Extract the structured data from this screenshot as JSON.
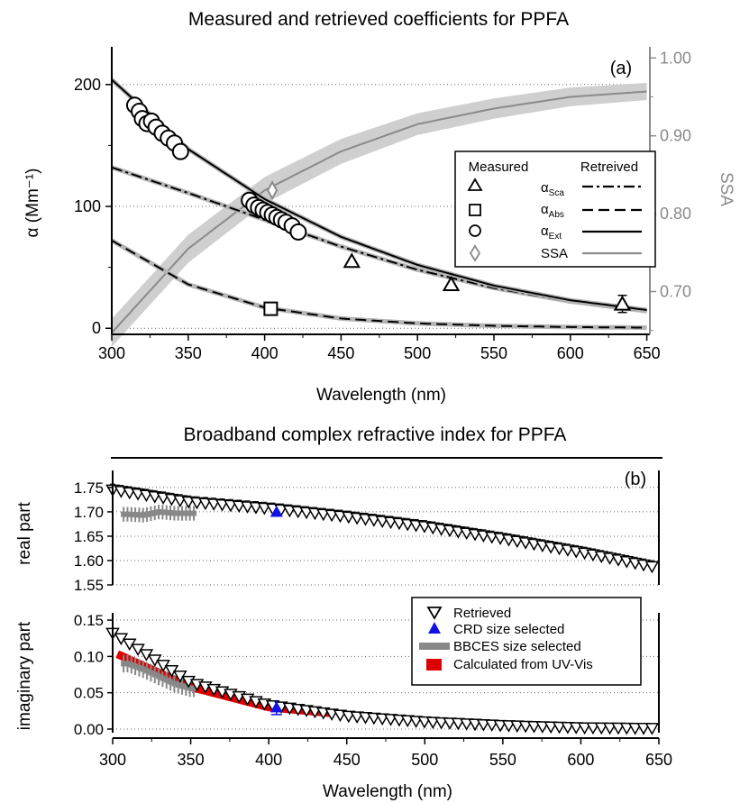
{
  "chart_data": [
    {
      "type": "line",
      "title": "Measured and retrieved coefficients for PPFA",
      "panel_label": "(a)",
      "xlabel": "Wavelength (nm)",
      "ylabel": "α (Mm⁻¹)",
      "y2label": "SSA",
      "xlim": [
        300,
        652
      ],
      "ylim": [
        -5,
        225
      ],
      "y2lim": [
        0.645,
        1.005
      ],
      "xticks": [
        "300",
        "350",
        "400",
        "450",
        "500",
        "550",
        "600",
        "650"
      ],
      "yticks": [
        "0",
        "100",
        "200"
      ],
      "y2ticks": [
        "0.70",
        "0.80",
        "0.90",
        "1.00"
      ],
      "grid": "horizontal dotted",
      "legend": {
        "position": "right",
        "measured_header": "Measured",
        "retrieved_header": "Retreived",
        "entries": [
          {
            "main": "α",
            "sub": "Sca",
            "marker": "triangle",
            "line": "dash-dot"
          },
          {
            "main": "α",
            "sub": "Abs",
            "marker": "square",
            "line": "dashed"
          },
          {
            "main": "α",
            "sub": "Ext",
            "marker": "circle",
            "line": "solid"
          },
          {
            "main": "SSA",
            "sub": "",
            "marker": "diamond",
            "line": "gray"
          }
        ]
      },
      "series": [
        {
          "name": "αSca",
          "kind": "measured",
          "x": [
            457,
            522,
            634
          ],
          "y": [
            55,
            36,
            20
          ],
          "yerr": [
            0,
            0,
            7
          ]
        },
        {
          "name": "αAbs",
          "kind": "measured",
          "x": [
            404
          ],
          "y": [
            16
          ]
        },
        {
          "name": "αExt",
          "kind": "measured",
          "x": [
            315,
            318,
            320,
            323,
            326,
            329,
            333,
            337,
            341,
            345,
            390,
            393,
            396,
            399,
            402,
            405,
            408,
            411,
            414,
            418,
            422
          ],
          "y": [
            183,
            178,
            172,
            168,
            170,
            165,
            160,
            156,
            152,
            145,
            105,
            101,
            99,
            97,
            95,
            93,
            91,
            89,
            87,
            84,
            79
          ]
        },
        {
          "name": "SSA",
          "kind": "measured",
          "x": [
            405
          ],
          "y": [
            0.83
          ],
          "axis": "right"
        },
        {
          "name": "αSca",
          "kind": "retrieved",
          "x": [
            300,
            350,
            400,
            450,
            500,
            550,
            600,
            650
          ],
          "y": [
            132,
            111,
            89,
            67,
            48,
            33,
            22,
            14
          ]
        },
        {
          "name": "αAbs",
          "kind": "retrieved",
          "x": [
            300,
            350,
            400,
            450,
            500,
            550,
            600,
            650
          ],
          "y": [
            72,
            36,
            17,
            8,
            4,
            2,
            1,
            0.5
          ]
        },
        {
          "name": "αExt",
          "kind": "retrieved",
          "x": [
            300,
            350,
            400,
            450,
            500,
            550,
            600,
            650
          ],
          "y": [
            204,
            147,
            106,
            75,
            52,
            35,
            23,
            15
          ]
        },
        {
          "name": "SSA",
          "kind": "retrieved",
          "axis": "right",
          "x": [
            300,
            350,
            400,
            450,
            500,
            550,
            600,
            650
          ],
          "y": [
            0.647,
            0.755,
            0.83,
            0.88,
            0.915,
            0.935,
            0.95,
            0.957
          ],
          "band": [
            0.018,
            0.018,
            0.017,
            0.016,
            0.014,
            0.013,
            0.012,
            0.011
          ]
        }
      ]
    },
    {
      "type": "line",
      "title": "Broadband complex refractive index for PPFA",
      "panel_label": "(b)",
      "xlabel": "Wavelength (nm)",
      "xlim": [
        300,
        650
      ],
      "xticks": [
        "300",
        "350",
        "400",
        "450",
        "500",
        "550",
        "600",
        "650"
      ],
      "subplots": [
        {
          "ylabel": "real part",
          "ylim": [
            1.55,
            1.785
          ],
          "yticks": [
            "1.55",
            "1.60",
            "1.65",
            "1.70",
            "1.75"
          ],
          "series": [
            {
              "name": "Retrieved",
              "x": [
                300,
                350,
                400,
                450,
                500,
                550,
                600,
                650
              ],
              "y": [
                1.745,
                1.72,
                1.707,
                1.69,
                1.67,
                1.645,
                1.617,
                1.585
              ],
              "err": 0.012
            },
            {
              "name": "CRD size selected",
              "x": [
                405
              ],
              "y": [
                1.7
              ]
            },
            {
              "name": "BBCES size selected",
              "x": [
                310,
                320,
                330,
                340,
                350
              ],
              "y": [
                1.695,
                1.693,
                1.7,
                1.697,
                1.697
              ],
              "err": 0.015
            }
          ]
        },
        {
          "ylabel": "imaginary part",
          "ylim": [
            -0.005,
            0.16
          ],
          "yticks": [
            "0.00",
            "0.05",
            "0.10",
            "0.15"
          ],
          "legend": [
            "Retrieved",
            "CRD size selected",
            "BBCES size selected",
            "Calculated from UV-Vis"
          ],
          "series": [
            {
              "name": "Retrieved",
              "x": [
                300,
                350,
                400,
                450,
                500,
                550,
                600,
                650
              ],
              "y": [
                0.132,
                0.064,
                0.033,
                0.018,
                0.01,
                0.005,
                0.002,
                0.001
              ]
            },
            {
              "name": "CRD size selected",
              "x": [
                405
              ],
              "y": [
                0.03
              ],
              "err": 0.01
            },
            {
              "name": "BBCES size selected",
              "x": [
                310,
                320,
                330,
                340,
                350
              ],
              "y": [
                0.09,
                0.082,
                0.072,
                0.062,
                0.056
              ],
              "err": 0.012
            },
            {
              "name": "Calculated from UV-Vis",
              "x": [
                300,
                350,
                400,
                450
              ],
              "y": [
                0.106,
                0.058,
                0.03,
                0.02
              ]
            }
          ]
        }
      ]
    }
  ],
  "colors": {
    "crd": "#1212e6",
    "bbces": "#888888",
    "uvvis": "#dd0000",
    "ssa_band": "#cfcfcf",
    "ssa_line": "#8a8a8a"
  }
}
